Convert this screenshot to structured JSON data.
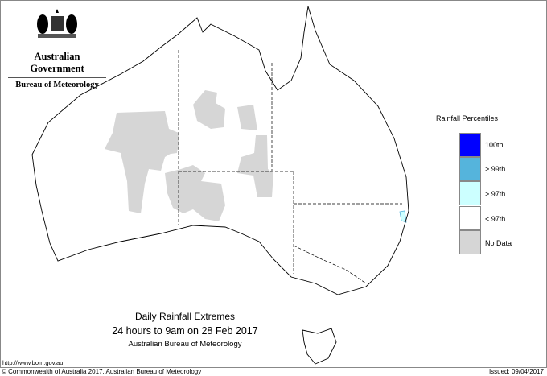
{
  "logo": {
    "government": "Australian Government",
    "bureau": "Bureau of Meteorology"
  },
  "legend": {
    "title": "Rainfall Percentiles",
    "items": [
      {
        "label": "100th",
        "color": "#0000ff"
      },
      {
        "label": "> 99th",
        "color": "#55b4dc"
      },
      {
        "label": "> 97th",
        "color": "#ccffff"
      },
      {
        "label": "< 97th",
        "color": "#ffffff"
      },
      {
        "label": "No Data",
        "color": "#d6d6d6"
      }
    ]
  },
  "title": {
    "line1": "Daily Rainfall Extremes",
    "line2": "24 hours to 9am on 28 Feb 2017",
    "line3": "Australian Bureau of Meteorology"
  },
  "footer": {
    "url": "http://www.bom.gov.au",
    "copyright": "© Commonwealth of Australia 2017, Australian Bureau of Meteorology",
    "issued": "Issued: 09/04/2017"
  }
}
